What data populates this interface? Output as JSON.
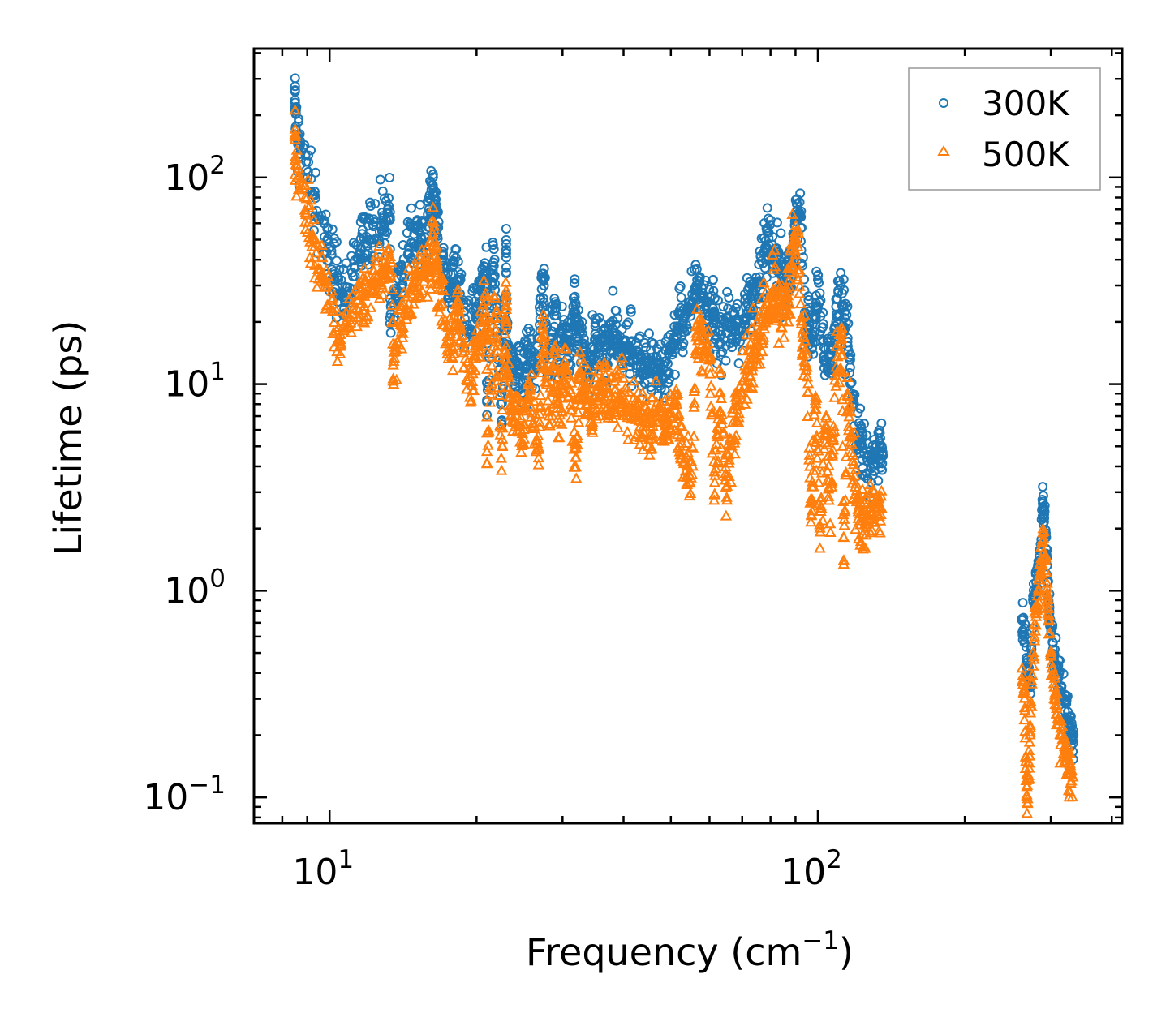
{
  "chart_data": {
    "type": "scatter",
    "title": "",
    "xlabel": "Frequency (cm",
    "xlabel_sup": "−1",
    "xlabel_end": ")",
    "ylabel": "Lifetime (ps)",
    "xscale": "log",
    "yscale": "log",
    "xlim": [
      7,
      420
    ],
    "ylim": [
      0.075,
      420
    ],
    "x_ticks": [
      {
        "value": 10,
        "base": "10",
        "exp": "1"
      },
      {
        "value": 100,
        "base": "10",
        "exp": "2"
      }
    ],
    "y_ticks": [
      {
        "value": 0.1,
        "base": "10",
        "exp": "−1"
      },
      {
        "value": 1,
        "base": "10",
        "exp": "0"
      },
      {
        "value": 10,
        "base": "10",
        "exp": "1"
      },
      {
        "value": 100,
        "base": "10",
        "exp": "2"
      }
    ],
    "legend_position": "top-right",
    "series": [
      {
        "name": "300K",
        "marker": "circle",
        "color": "#1f77b4",
        "points": [
          [
            8.5,
            265
          ],
          [
            8.5,
            210
          ],
          [
            8.6,
            152
          ],
          [
            10.5,
            27.5
          ],
          [
            12.3,
            58
          ],
          [
            13.3,
            68
          ],
          [
            13.3,
            21
          ],
          [
            14.7,
            48
          ],
          [
            15.2,
            55
          ],
          [
            16.0,
            63
          ],
          [
            16.2,
            92
          ],
          [
            16.5,
            68
          ],
          [
            16.5,
            57
          ],
          [
            17.8,
            23
          ],
          [
            18.0,
            39
          ],
          [
            19.2,
            18.5
          ],
          [
            20.2,
            26.5
          ],
          [
            20.8,
            37
          ],
          [
            21.0,
            32
          ],
          [
            21.0,
            7.1
          ],
          [
            21.7,
            45
          ],
          [
            22.5,
            6.6
          ],
          [
            23.0,
            43
          ],
          [
            23.0,
            41
          ],
          [
            23.0,
            20.5
          ],
          [
            23.4,
            13
          ],
          [
            24.0,
            12.5
          ],
          [
            25.2,
            10.5
          ],
          [
            25.5,
            15.5
          ],
          [
            26.5,
            12
          ],
          [
            27.3,
            32
          ],
          [
            27.5,
            30
          ],
          [
            28.0,
            11
          ],
          [
            29.0,
            25
          ],
          [
            29.3,
            11.5
          ],
          [
            30.2,
            20.5
          ],
          [
            31.0,
            13.5
          ],
          [
            31.8,
            26.5
          ],
          [
            32.0,
            19
          ],
          [
            32.5,
            17.5
          ],
          [
            33.2,
            15
          ],
          [
            34.0,
            10.2
          ],
          [
            35.0,
            17.5
          ],
          [
            36.0,
            16.8
          ],
          [
            37.0,
            13.5
          ],
          [
            38.0,
            18.5
          ],
          [
            39.5,
            15.5
          ],
          [
            41.0,
            14
          ],
          [
            42.5,
            13
          ],
          [
            44.0,
            12
          ],
          [
            46.0,
            13.5
          ],
          [
            48.0,
            11
          ],
          [
            50.0,
            14.5
          ],
          [
            52.0,
            19
          ],
          [
            54.0,
            18.5
          ],
          [
            56.0,
            29
          ],
          [
            57.5,
            27
          ],
          [
            59.0,
            24
          ],
          [
            61.0,
            22
          ],
          [
            63.0,
            16
          ],
          [
            66.0,
            20
          ],
          [
            69.0,
            18
          ],
          [
            72.0,
            24
          ],
          [
            74.0,
            28
          ],
          [
            76.0,
            33
          ],
          [
            78.0,
            46
          ],
          [
            79.0,
            57
          ],
          [
            81.0,
            38
          ],
          [
            83.0,
            42
          ],
          [
            85.0,
            30
          ],
          [
            87.0,
            35
          ],
          [
            89.0,
            43
          ],
          [
            90.0,
            66
          ],
          [
            92.0,
            66.5
          ],
          [
            94.0,
            22
          ],
          [
            96.0,
            20
          ],
          [
            98.0,
            17
          ],
          [
            100.0,
            32
          ],
          [
            103.0,
            15
          ],
          [
            106.0,
            12
          ],
          [
            109.0,
            20
          ],
          [
            112.0,
            24
          ],
          [
            115.0,
            16
          ],
          [
            118.0,
            8
          ],
          [
            122.0,
            5
          ],
          [
            126.0,
            4.4
          ],
          [
            130.0,
            4
          ],
          [
            134.0,
            5.8
          ],
          [
            136.0,
            4.5
          ],
          [
            262,
            0.72
          ],
          [
            265,
            0.6
          ],
          [
            268,
            0.45
          ],
          [
            272,
            0.35
          ],
          [
            276,
            0.9
          ],
          [
            280,
            1.1
          ],
          [
            285,
            1.4
          ],
          [
            289,
            2.7
          ],
          [
            291,
            2.25
          ],
          [
            294,
            1.5
          ],
          [
            298,
            0.8
          ],
          [
            303,
            0.52
          ],
          [
            310,
            0.38
          ],
          [
            318,
            0.3
          ],
          [
            325,
            0.26
          ],
          [
            330,
            0.21
          ],
          [
            334,
            0.2
          ]
        ]
      },
      {
        "name": "500K",
        "marker": "triangle",
        "color": "#ff7f0e",
        "points": [
          [
            8.5,
            152
          ],
          [
            8.5,
            120
          ],
          [
            8.7,
            87
          ],
          [
            10.5,
            16
          ],
          [
            12.4,
            33.5
          ],
          [
            13.4,
            38.5
          ],
          [
            13.5,
            12.3
          ],
          [
            14.6,
            28.5
          ],
          [
            15.3,
            33
          ],
          [
            16.0,
            37
          ],
          [
            16.3,
            53
          ],
          [
            16.6,
            38
          ],
          [
            16.6,
            33
          ],
          [
            17.8,
            13.5
          ],
          [
            18.2,
            23
          ],
          [
            19.4,
            10.8
          ],
          [
            20.2,
            15.5
          ],
          [
            20.8,
            22.5
          ],
          [
            21.0,
            19
          ],
          [
            21.0,
            4.1
          ],
          [
            21.8,
            26
          ],
          [
            22.5,
            3.8
          ],
          [
            23.0,
            25.5
          ],
          [
            23.0,
            24
          ],
          [
            23.0,
            12
          ],
          [
            23.6,
            7.4
          ],
          [
            24.2,
            7
          ],
          [
            25.0,
            6
          ],
          [
            25.6,
            8.8
          ],
          [
            26.8,
            4.9
          ],
          [
            27.3,
            18.5
          ],
          [
            27.5,
            17.5
          ],
          [
            28.2,
            6.4
          ],
          [
            29.0,
            14
          ],
          [
            29.4,
            6.8
          ],
          [
            30.3,
            12
          ],
          [
            31.2,
            7.9
          ],
          [
            32.0,
            4.4
          ],
          [
            32.5,
            10.5
          ],
          [
            33.5,
            8.8
          ],
          [
            34.5,
            6.2
          ],
          [
            35.5,
            10
          ],
          [
            36.5,
            9.5
          ],
          [
            38.0,
            8
          ],
          [
            39.5,
            9
          ],
          [
            41.0,
            7.4
          ],
          [
            43.0,
            7
          ],
          [
            45.0,
            6.4
          ],
          [
            47.0,
            7.6
          ],
          [
            49.0,
            5.9
          ],
          [
            51.0,
            8.2
          ],
          [
            53.0,
            4.2
          ],
          [
            55.0,
            3.5
          ],
          [
            56.5,
            17
          ],
          [
            58.0,
            15.5
          ],
          [
            60.0,
            14
          ],
          [
            61.5,
            2.9
          ],
          [
            63.0,
            9
          ],
          [
            65.0,
            3.2
          ],
          [
            67.0,
            6.5
          ],
          [
            70.0,
            9
          ],
          [
            73.0,
            13
          ],
          [
            75.0,
            16
          ],
          [
            77.0,
            19
          ],
          [
            79.0,
            22
          ],
          [
            81.0,
            27
          ],
          [
            83.0,
            25
          ],
          [
            85.0,
            20
          ],
          [
            87.0,
            28
          ],
          [
            89.0,
            47
          ],
          [
            91.0,
            46
          ],
          [
            93.0,
            15
          ],
          [
            95.0,
            12
          ],
          [
            97.0,
            2.3
          ],
          [
            99.0,
            8
          ],
          [
            101.0,
            2
          ],
          [
            104.0,
            7
          ],
          [
            106.0,
            2.1
          ],
          [
            109.0,
            12
          ],
          [
            112.0,
            16.5
          ],
          [
            115.0,
            9
          ],
          [
            118.0,
            4.5
          ],
          [
            121.0,
            2.4
          ],
          [
            124.0,
            2.3
          ],
          [
            128.0,
            2.2
          ],
          [
            132.0,
            2.4
          ],
          [
            135.0,
            2.5
          ],
          [
            113.0,
            1.4
          ],
          [
            262,
            0.42
          ],
          [
            265,
            0.3
          ],
          [
            267,
            0.12
          ],
          [
            269,
            0.098
          ],
          [
            272,
            0.2
          ],
          [
            276,
            0.5
          ],
          [
            280,
            0.8
          ],
          [
            285,
            1.2
          ],
          [
            289,
            1.9
          ],
          [
            292,
            1.4
          ],
          [
            296,
            0.9
          ],
          [
            300,
            0.5
          ],
          [
            306,
            0.3
          ],
          [
            314,
            0.2
          ],
          [
            322,
            0.16
          ],
          [
            328,
            0.13
          ],
          [
            333,
            0.125
          ]
        ]
      }
    ]
  }
}
